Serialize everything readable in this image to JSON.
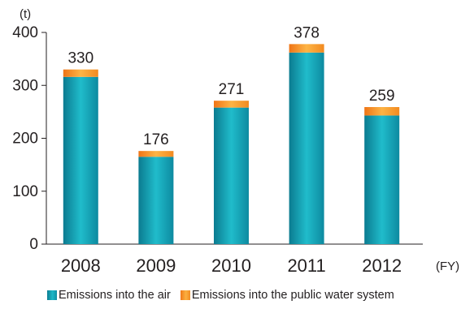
{
  "chart_data": {
    "type": "bar",
    "stacked": true,
    "y_unit": "(t)",
    "x_unit": "(FY)",
    "categories": [
      "2008",
      "2009",
      "2010",
      "2011",
      "2012"
    ],
    "totals": [
      "330",
      "176",
      "271",
      "378",
      "259"
    ],
    "series": [
      {
        "name": "Emissions into the air",
        "values": [
          316,
          165,
          258,
          362,
          243
        ],
        "color": "#1aa6b8"
      },
      {
        "name": "Emissions into the public water system",
        "values": [
          14,
          11,
          13,
          16,
          16
        ],
        "color": "#f7941d"
      }
    ],
    "ylim": [
      0,
      400
    ],
    "yticks": [
      "0",
      "100",
      "200",
      "300",
      "400"
    ],
    "grid": false,
    "legend_position": "bottom"
  }
}
